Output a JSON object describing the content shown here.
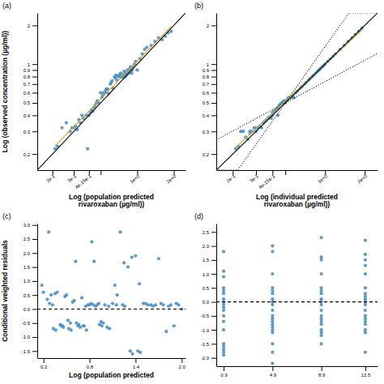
{
  "chart_data": [
    {
      "type": "scatter",
      "title": "(a)",
      "xlabel": "Log (population predicted\nrivaroxaban (µg/ml))",
      "ylabel": "Log (observed concentration (µg/ml))",
      "log": true,
      "xlim": [
        0.15,
        2.5
      ],
      "ylim": [
        0.15,
        2.5
      ],
      "xticks": [
        {
          "value": 0.2,
          "label": "2e-1"
        },
        {
          "value": 0.3,
          "label": "3e-1"
        },
        {
          "value": 0.4,
          "label": "4e-15e-1"
        },
        {
          "value": 0.5,
          "label": null
        },
        {
          "value": 1.0,
          "label": "1e+0"
        },
        {
          "value": 2.0,
          "label": "2e+0"
        }
      ],
      "yticks": [
        0.2,
        0.3,
        0.4,
        0.5,
        0.6,
        0.7,
        0.8,
        0.9,
        1,
        2
      ],
      "series": [
        {
          "type": "scatter",
          "color": "#4A90C4",
          "x": [
            0.21,
            0.22,
            0.24,
            0.26,
            0.28,
            0.29,
            0.3,
            0.31,
            0.32,
            0.33,
            0.34,
            0.35,
            0.36,
            0.38,
            0.39,
            0.4,
            0.41,
            0.42,
            0.43,
            0.44,
            0.45,
            0.46,
            0.47,
            0.48,
            0.5,
            0.51,
            0.52,
            0.53,
            0.55,
            0.55,
            0.56,
            0.57,
            0.58,
            0.6,
            0.61,
            0.62,
            0.63,
            0.65,
            0.66,
            0.67,
            0.68,
            0.7,
            0.71,
            0.72,
            0.73,
            0.75,
            0.76,
            0.77,
            0.78,
            0.8,
            0.8,
            0.81,
            0.82,
            0.83,
            0.85,
            0.86,
            0.87,
            0.88,
            0.9,
            0.91,
            0.92,
            0.95,
            0.97,
            1.0,
            1.05,
            1.1,
            1.15,
            1.2,
            1.3,
            1.4,
            1.5,
            1.6,
            1.7,
            1.8,
            1.9
          ],
          "values": [
            0.22,
            0.23,
            0.32,
            0.35,
            0.3,
            0.32,
            0.32,
            0.33,
            0.31,
            0.37,
            0.35,
            0.4,
            0.38,
            0.4,
            0.22,
            0.4,
            0.42,
            0.44,
            0.43,
            0.46,
            0.48,
            0.5,
            0.52,
            0.5,
            0.6,
            0.55,
            0.57,
            0.6,
            0.63,
            0.6,
            0.64,
            0.64,
            0.59,
            0.7,
            0.72,
            0.74,
            0.65,
            0.8,
            0.78,
            0.82,
            0.75,
            0.8,
            0.82,
            0.8,
            0.85,
            0.8,
            0.79,
            0.83,
            0.88,
            0.8,
            0.82,
            0.85,
            0.83,
            0.9,
            0.85,
            0.88,
            0.92,
            0.95,
            0.85,
            0.9,
            0.95,
            1.0,
            1.05,
            0.9,
            1.1,
            1.2,
            1.3,
            1.35,
            1.4,
            1.5,
            1.6,
            1.55,
            1.65,
            1.75,
            1.8
          ]
        },
        {
          "type": "line",
          "color": "#000000",
          "line_style": "solid",
          "x": [
            0.15,
            2.5
          ],
          "values": [
            0.15,
            2.5
          ]
        },
        {
          "type": "line",
          "color": "#DAA520",
          "line_style": "solid",
          "x": [
            0.21,
            1.9
          ],
          "values": [
            0.2314,
            1.963
          ]
        }
      ]
    },
    {
      "type": "scatter",
      "title": "(b)",
      "xlabel": "Log (individual predicted\nrivaroxaban (µg/ml))",
      "log": true,
      "xlim": [
        0.15,
        2.5
      ],
      "ylim": [
        0.15,
        2.5
      ],
      "xticks": [
        {
          "value": 0.2,
          "label": "2e-1"
        },
        {
          "value": 0.3,
          "label": "3e-1"
        },
        {
          "value": 0.4,
          "label": "4e-15e-1"
        },
        {
          "value": 0.5,
          "label": null
        },
        {
          "value": 1.0,
          "label": "1e+0"
        },
        {
          "value": 2.0,
          "label": "2e+0"
        }
      ],
      "yticks": [
        0.2,
        0.3,
        0.4,
        0.5,
        0.6,
        0.7,
        0.8,
        0.9,
        1,
        2
      ],
      "series": [
        {
          "type": "scatter",
          "color": "#4A90C4",
          "x": [
            0.21,
            0.22,
            0.23,
            0.24,
            0.25,
            0.26,
            0.27,
            0.27,
            0.28,
            0.29,
            0.3,
            0.3,
            0.31,
            0.32,
            0.33,
            0.34,
            0.35,
            0.36,
            0.37,
            0.38,
            0.39,
            0.4,
            0.4,
            0.41,
            0.42,
            0.43,
            0.44,
            0.44,
            0.45,
            0.46,
            0.47,
            0.48,
            0.49,
            0.5,
            0.51,
            0.52,
            0.53,
            0.55,
            0.57,
            0.58,
            0.6,
            0.62,
            0.65,
            0.67,
            0.7,
            0.72,
            0.75,
            0.77,
            0.8,
            0.82,
            0.85,
            0.88,
            0.9,
            0.92,
            0.95,
            0.97,
            1.0,
            1.05,
            1.1,
            1.15,
            1.2,
            1.3,
            1.4,
            1.5,
            1.6,
            1.7,
            1.8,
            1.9
          ],
          "values": [
            0.22,
            0.23,
            0.3,
            0.3,
            0.27,
            0.26,
            0.3,
            0.29,
            0.3,
            0.32,
            0.32,
            0.3,
            0.32,
            0.33,
            0.32,
            0.35,
            0.36,
            0.37,
            0.38,
            0.39,
            0.38,
            0.4,
            0.42,
            0.43,
            0.44,
            0.45,
            0.46,
            0.4,
            0.48,
            0.49,
            0.5,
            0.51,
            0.52,
            0.5,
            0.52,
            0.53,
            0.55,
            0.55,
            0.57,
            0.55,
            0.6,
            0.62,
            0.65,
            0.67,
            0.7,
            0.72,
            0.75,
            0.77,
            0.8,
            0.82,
            0.85,
            0.88,
            0.9,
            0.92,
            0.95,
            0.97,
            1.0,
            1.05,
            1.1,
            1.15,
            1.2,
            1.3,
            1.4,
            1.5,
            1.6,
            1.7,
            1.8,
            1.9
          ]
        },
        {
          "type": "line",
          "color": "#000000",
          "line_style": "dotted",
          "x": [
            0.15,
            0.5,
            1.517,
            2.5
          ],
          "values": [
            0.2579,
            0.5,
            2.5,
            2.5
          ]
        },
        {
          "type": "line",
          "color": "#000000",
          "line_style": "dotted",
          "x": [
            0.15,
            0.218,
            0.5,
            2.5
          ],
          "values": [
            0.15,
            0.15,
            0.5,
            1.2115
          ]
        },
        {
          "type": "line",
          "color": "#DAA520",
          "line_style": "solid",
          "x": [
            0.21,
            1.9
          ],
          "values": [
            0.225,
            1.841
          ]
        },
        {
          "type": "line",
          "color": "#000000",
          "line_style": "solid",
          "x": [
            0.15,
            2.5
          ],
          "values": [
            0.15,
            2.5
          ]
        }
      ]
    },
    {
      "type": "scatter",
      "title": "(c)",
      "xlabel": "Log (population predicted",
      "ylabel": "Conditional weighted residuals",
      "xlim": [
        0.12,
        2.05
      ],
      "ylim": [
        -1.75,
        3.05
      ],
      "xticks": [
        0.2,
        0.8,
        1.4,
        {
          "value": 2.0,
          "label": "2.0"
        }
      ],
      "yticks": [
        -1.5,
        {
          "value": -1.0,
          "label": "-1.0"
        },
        -0.5,
        {
          "value": 0.0,
          "label": "0.0"
        },
        0.5,
        {
          "value": 1.0,
          "label": "1.0"
        },
        1.5,
        {
          "value": 2.0,
          "label": "2.0"
        },
        2.5,
        {
          "value": 3.0,
          "label": "3.0"
        }
      ],
      "series": [
        {
          "type": "scatter",
          "color": "#4A90C4",
          "x": [
            0.18,
            0.2,
            0.27,
            0.3,
            0.32,
            0.35,
            0.38,
            0.42,
            0.45,
            0.48,
            0.5,
            0.52,
            0.55,
            0.58,
            0.6,
            0.62,
            0.65,
            0.68,
            0.7,
            0.72,
            0.75,
            0.78,
            0.8,
            0.82,
            0.85,
            0.88,
            0.9,
            0.92,
            0.95,
            0.98,
            1.0,
            1.05,
            1.1,
            1.15,
            1.2,
            1.25,
            1.3,
            1.35,
            1.4,
            1.45,
            1.5,
            1.6,
            1.7,
            1.8,
            1.9,
            2.0,
            0.25,
            0.28,
            0.33,
            0.36,
            0.43,
            0.46,
            0.53,
            0.56,
            0.63,
            0.66,
            0.73,
            0.76,
            0.83,
            0.86,
            0.93,
            0.96,
            1.03,
            1.06,
            1.13,
            1.16,
            1.23,
            1.26,
            1.33,
            1.36,
            1.43,
            1.46,
            1.53,
            1.56,
            1.63,
            1.66,
            1.73,
            1.76,
            1.83,
            1.86,
            1.93,
            1.96
          ],
          "values": [
            0.85,
            0.6,
            2.75,
            0.5,
            0.15,
            0.55,
            0.6,
            -0.55,
            -0.6,
            0.45,
            0.5,
            -0.4,
            -0.5,
            0.25,
            0.3,
            1.7,
            -0.6,
            -0.65,
            0.4,
            -0.6,
            0.1,
            0.15,
            0.15,
            0.2,
            0.15,
            0.1,
            0.15,
            0.2,
            -0.45,
            -0.5,
            0.15,
            0.1,
            0.2,
            0.15,
            2.75,
            1.65,
            1.5,
            1.85,
            1.9,
            0.9,
            0.2,
            0.15,
            1.8,
            -0.8,
            -0.6,
            0.0,
            0.35,
            0.2,
            -0.7,
            -0.75,
            -0.6,
            -0.65,
            -0.7,
            -0.75,
            -0.5,
            -0.55,
            -0.6,
            -0.75,
            2.4,
            1.7,
            -0.55,
            -0.6,
            -0.65,
            -0.7,
            0.85,
            0.5,
            0.15,
            0.1,
            -1.5,
            -1.6,
            -1.5,
            -1.55,
            0.2,
            0.15,
            0.1,
            0.15,
            0.2,
            0.15,
            0.1,
            0.15,
            0.2,
            0.15
          ]
        },
        {
          "type": "line",
          "color": "#000000",
          "line_style": "dashed",
          "x": [
            0.12,
            2.05
          ],
          "values": [
            0.0,
            0.0
          ]
        }
      ]
    },
    {
      "type": "scatter",
      "title": "(d)",
      "xlim": [
        0.3,
        13.5
      ],
      "ylim": [
        -2.3,
        2.8
      ],
      "xticks": [
        0.9,
        4.9,
        8.9,
        12.5
      ],
      "yticks": [
        {
          "value": -2.0,
          "label": "-2.0"
        },
        -1.5,
        {
          "value": -1.0,
          "label": "-1.0"
        },
        -0.5,
        {
          "value": 0.0,
          "label": "0.0"
        },
        0.5,
        {
          "value": 1.0,
          "label": "1.0"
        },
        1.5,
        {
          "value": 2.0,
          "label": "2.0"
        },
        2.5
      ],
      "series": [
        {
          "type": "scatter",
          "color": "#4A90C4",
          "x": [
            0.9,
            0.9,
            0.9,
            0.9,
            0.9,
            0.9,
            0.9,
            0.9,
            0.9,
            0.9,
            0.9,
            0.9,
            0.9,
            0.9,
            0.9,
            0.9,
            0.9,
            0.9,
            0.9,
            4.9,
            4.9,
            4.9,
            4.9,
            4.9,
            4.9,
            4.9,
            4.9,
            4.9,
            4.9,
            4.9,
            4.9,
            4.9,
            4.9,
            4.9,
            4.9,
            4.9,
            4.9,
            4.9,
            4.9,
            8.9,
            8.9,
            8.9,
            8.9,
            8.9,
            8.9,
            8.9,
            8.9,
            8.9,
            8.9,
            8.9,
            8.9,
            8.9,
            8.9,
            8.9,
            8.9,
            8.9,
            8.9,
            8.9,
            12.5,
            12.5,
            12.5,
            12.5,
            12.5,
            12.5,
            12.5,
            12.5,
            12.5,
            12.5,
            12.5,
            12.5,
            12.5,
            12.5,
            12.5,
            12.5,
            12.5,
            12.5,
            12.5
          ],
          "values": [
            1.8,
            1.1,
            0.9,
            0.5,
            0.4,
            0.3,
            0.1,
            -0.0,
            -0.1,
            -0.2,
            -0.3,
            -0.5,
            -0.7,
            -1.0,
            -1.5,
            -1.6,
            -1.7,
            -1.8,
            -1.9,
            2.0,
            1.8,
            1.0,
            0.5,
            0.4,
            0.3,
            0.1,
            -0.0,
            -0.1,
            -0.3,
            -0.5,
            -0.6,
            -0.7,
            -0.8,
            -0.9,
            -1.0,
            -1.1,
            -1.5,
            -1.8,
            -2.2,
            2.3,
            1.6,
            1.5,
            1.0,
            0.5,
            0.4,
            0.3,
            0.1,
            -0.0,
            -0.1,
            -0.3,
            -0.5,
            -0.6,
            -0.7,
            -0.8,
            -1.0,
            -1.1,
            -1.2,
            -1.5,
            -1.8,
            2.2,
            1.7,
            1.5,
            1.3,
            1.0,
            0.5,
            0.3,
            0.2,
            0.1,
            -0.0,
            -0.1,
            -0.3,
            -0.5,
            -0.6,
            -0.7,
            -0.8,
            -1.0,
            -1.1
          ]
        },
        {
          "type": "line",
          "color": "#000000",
          "line_style": "dashed",
          "x": [
            0.3,
            13.5
          ],
          "values": [
            0.0,
            0.0
          ]
        }
      ]
    }
  ]
}
